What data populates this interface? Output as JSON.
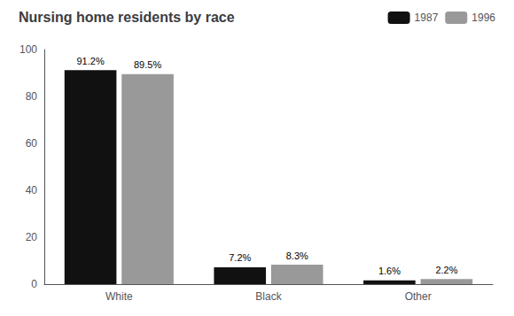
{
  "chart_data": {
    "type": "bar",
    "title": "Nursing home residents by race",
    "categories": [
      "White",
      "Black",
      "Other"
    ],
    "series": [
      {
        "name": "1987",
        "color": "#111111",
        "values": [
          91.2,
          7.2,
          1.6
        ],
        "value_labels": [
          "91.2%",
          "7.2%",
          "1.6%"
        ]
      },
      {
        "name": "1996",
        "color": "#999999",
        "values": [
          89.5,
          8.3,
          2.2
        ],
        "value_labels": [
          "89.5%",
          "8.3%",
          "2.2%"
        ]
      }
    ],
    "ylim": [
      0,
      100
    ],
    "yticks": [
      0,
      20,
      40,
      60,
      80,
      100
    ],
    "grid": false,
    "legend": "upper right",
    "data_labels": true
  }
}
